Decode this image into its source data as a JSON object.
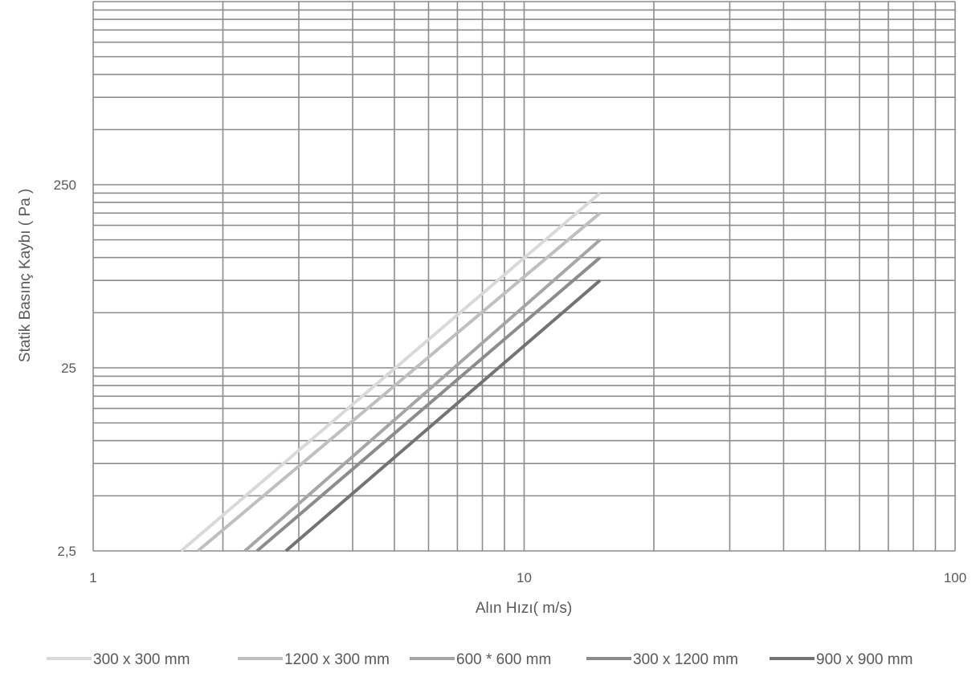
{
  "chart_data": {
    "type": "line",
    "xlabel": "Alın Hızı( m/s)",
    "ylabel": "Statik Basınç Kaybı ( Pa )",
    "xscale": "log",
    "yscale": "log",
    "xlim": [
      1,
      100
    ],
    "ylim": [
      2.5,
      2500
    ],
    "x_tick_values": [
      1,
      10,
      100
    ],
    "x_tick_labels": [
      "1",
      "10",
      "100"
    ],
    "y_tick_values": [
      2.5,
      25,
      250
    ],
    "y_tick_labels": [
      "2,5",
      "25",
      "250"
    ],
    "grid": true,
    "legend_position": "bottom",
    "series": [
      {
        "name": "300 x 300 mm",
        "color": "#d9d9d9",
        "x": [
          1.6,
          15
        ],
        "y": [
          2.5,
          225
        ]
      },
      {
        "name": "1200 x 300 mm",
        "color": "#bfbfbf",
        "x": [
          1.75,
          15
        ],
        "y": [
          2.5,
          175
        ]
      },
      {
        "name": "600 * 600 mm",
        "color": "#a6a6a6",
        "x": [
          2.25,
          15
        ],
        "y": [
          2.5,
          125
        ]
      },
      {
        "name": "300 x 1200 mm",
        "color": "#8c8c8c",
        "x": [
          2.4,
          15
        ],
        "y": [
          2.5,
          100
        ]
      },
      {
        "name": "900 x 900 mm",
        "color": "#737373",
        "x": [
          2.8,
          15
        ],
        "y": [
          2.5,
          75
        ]
      }
    ]
  }
}
